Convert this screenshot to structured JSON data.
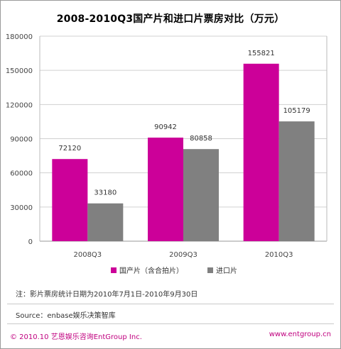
{
  "chart_data": {
    "type": "bar",
    "title": "2008-2010Q3国产片和进口片票房对比（万元）",
    "categories": [
      "2008Q3",
      "2009Q3",
      "2010Q3"
    ],
    "series": [
      {
        "name": "国产片（含合拍片）",
        "color": "#cc0099",
        "values": [
          72120,
          90942,
          155821
        ]
      },
      {
        "name": "进口片",
        "color": "#808080",
        "values": [
          33180,
          80858,
          105179
        ]
      }
    ],
    "ylim": [
      0,
      180000
    ],
    "yticks": [
      0,
      30000,
      60000,
      90000,
      120000,
      150000,
      180000
    ],
    "ytick_labels": [
      "0",
      "30000",
      "60000",
      "90000",
      "120000",
      "150000",
      "180000"
    ],
    "grid": true,
    "legend_position": "bottom"
  },
  "note": "注：影片票房统计日期为2010年7月1日-2010年9月30日",
  "source": "Source：enbase娱乐决策智库",
  "footer": {
    "copyright": "© 2010.10  艺恩娱乐咨询EntGroup Inc.",
    "website": "www.entgroup.cn"
  }
}
